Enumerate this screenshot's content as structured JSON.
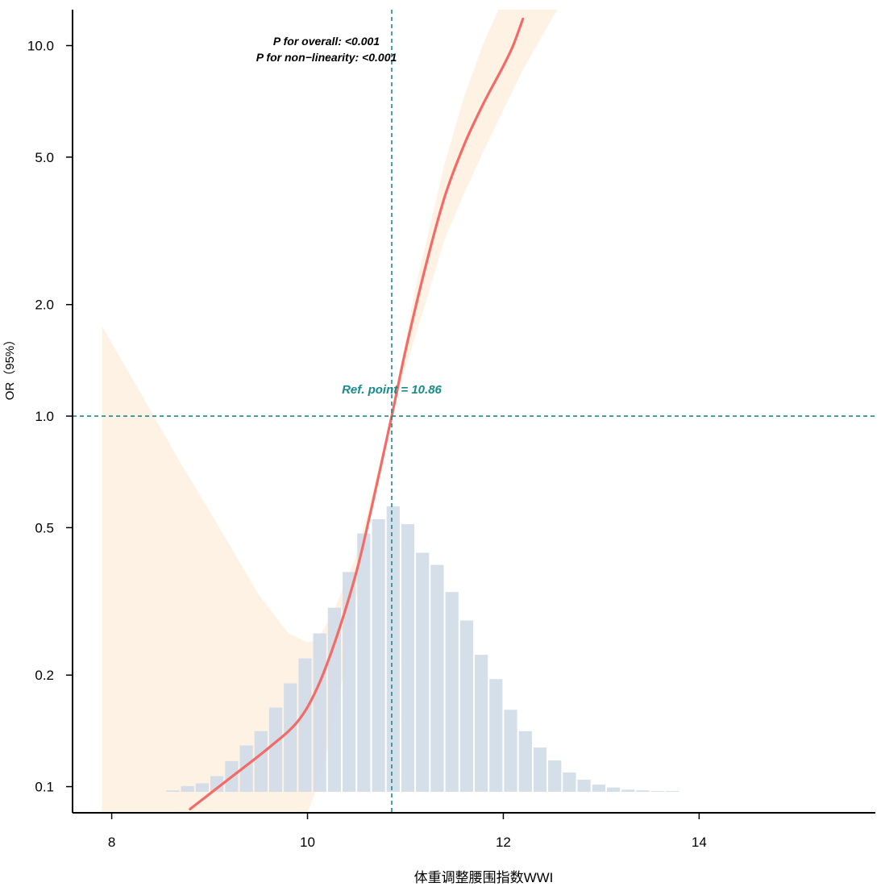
{
  "chart_data": {
    "type": "line",
    "title": "",
    "xlabel": "体重调整腰围指数WWI",
    "ylabel": "OR（95%）",
    "xlim": [
      7.6,
      15.8
    ],
    "ylim": [
      0.085,
      12.5
    ],
    "y_scale": "log",
    "x_ticks": [
      8,
      10,
      12,
      14
    ],
    "x_tick_labels": [
      "8",
      "10",
      "12",
      "14"
    ],
    "y_ticks": [
      0.1,
      0.2,
      0.5,
      1.0,
      2.0,
      5.0,
      10.0
    ],
    "y_tick_labels": [
      "0.1",
      "0.2",
      "0.5",
      "1.0",
      "2.0",
      "5.0",
      "10.0"
    ],
    "annotations": [
      "P for overall: <0.001",
      "P for non−linearity: <0.001"
    ],
    "ref_label": "Ref. point = 10.86",
    "ref_point": {
      "x": 10.86,
      "y": 1.0
    },
    "colors": {
      "curve": "#f26b67",
      "ci_band": "#fdf0df",
      "histogram": "#d0dbe8",
      "reference": "#1a8a8a",
      "axis": "#000000"
    },
    "series": [
      {
        "values": [
          {
            "x": 8.8,
            "y": 0.087
          },
          {
            "x": 9.2,
            "y": 0.105
          },
          {
            "x": 9.6,
            "y": 0.127
          },
          {
            "x": 9.9,
            "y": 0.15
          },
          {
            "x": 10.1,
            "y": 0.185
          },
          {
            "x": 10.3,
            "y": 0.255
          },
          {
            "x": 10.5,
            "y": 0.38
          },
          {
            "x": 10.65,
            "y": 0.56
          },
          {
            "x": 10.86,
            "y": 1.0
          },
          {
            "x": 11.0,
            "y": 1.5
          },
          {
            "x": 11.2,
            "y": 2.5
          },
          {
            "x": 11.4,
            "y": 3.9
          },
          {
            "x": 11.6,
            "y": 5.4
          },
          {
            "x": 11.8,
            "y": 7.0
          },
          {
            "x": 12.0,
            "y": 8.8
          },
          {
            "x": 12.1,
            "y": 10.0
          },
          {
            "x": 12.2,
            "y": 11.8
          }
        ]
      }
    ],
    "ci_band": {
      "upper": [
        {
          "x": 7.9,
          "y": 1.75
        },
        {
          "x": 8.3,
          "y": 1.15
        },
        {
          "x": 8.7,
          "y": 0.75
        },
        {
          "x": 9.1,
          "y": 0.5
        },
        {
          "x": 9.5,
          "y": 0.33
        },
        {
          "x": 9.8,
          "y": 0.26
        },
        {
          "x": 10.0,
          "y": 0.245
        },
        {
          "x": 10.1,
          "y": 0.25
        },
        {
          "x": 10.25,
          "y": 0.29
        },
        {
          "x": 10.5,
          "y": 0.42
        },
        {
          "x": 10.86,
          "y": 1.0
        },
        {
          "x": 11.1,
          "y": 2.2
        },
        {
          "x": 11.4,
          "y": 4.8
        },
        {
          "x": 11.6,
          "y": 7.3
        },
        {
          "x": 11.8,
          "y": 10.2
        },
        {
          "x": 11.95,
          "y": 12.5
        }
      ],
      "lower": [
        {
          "x": 12.55,
          "y": 12.5
        },
        {
          "x": 12.2,
          "y": 8.6
        },
        {
          "x": 12.0,
          "y": 6.7
        },
        {
          "x": 11.8,
          "y": 5.2
        },
        {
          "x": 11.6,
          "y": 4.0
        },
        {
          "x": 11.4,
          "y": 3.0
        },
        {
          "x": 11.2,
          "y": 2.0
        },
        {
          "x": 11.0,
          "y": 1.35
        },
        {
          "x": 10.86,
          "y": 1.0
        },
        {
          "x": 10.6,
          "y": 0.48
        },
        {
          "x": 10.4,
          "y": 0.22
        },
        {
          "x": 10.2,
          "y": 0.125
        },
        {
          "x": 10.1,
          "y": 0.1
        },
        {
          "x": 10.0,
          "y": 0.085
        },
        {
          "x": 7.9,
          "y": 0.085
        }
      ]
    },
    "histogram": {
      "bin_width": 0.15,
      "bin_starts": [
        8.55,
        8.7,
        8.85,
        9.0,
        9.15,
        9.3,
        9.45,
        9.6,
        9.75,
        9.9,
        10.05,
        10.2,
        10.35,
        10.5,
        10.65,
        10.8,
        10.95,
        11.1,
        11.25,
        11.4,
        11.55,
        11.7,
        11.85,
        12.0,
        12.15,
        12.3,
        12.45,
        12.6,
        12.75,
        12.9,
        13.05,
        13.2,
        13.35,
        13.5,
        13.65
      ],
      "heights": [
        0.002,
        0.008,
        0.012,
        0.022,
        0.043,
        0.065,
        0.085,
        0.118,
        0.152,
        0.187,
        0.222,
        0.258,
        0.308,
        0.362,
        0.382,
        0.4,
        0.375,
        0.335,
        0.318,
        0.28,
        0.24,
        0.192,
        0.158,
        0.115,
        0.085,
        0.062,
        0.044,
        0.027,
        0.017,
        0.01,
        0.006,
        0.003,
        0.002,
        0.001,
        0.001
      ]
    }
  }
}
